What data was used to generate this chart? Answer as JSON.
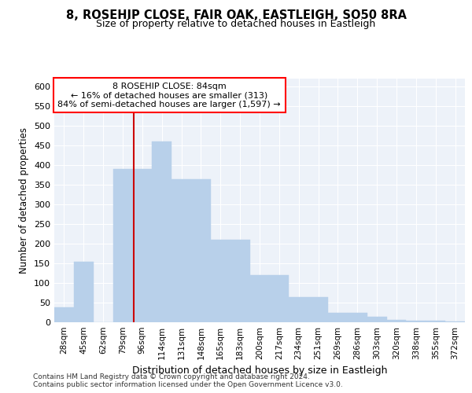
{
  "title_line1": "8, ROSEHIP CLOSE, FAIR OAK, EASTLEIGH, SO50 8RA",
  "title_line2": "Size of property relative to detached houses in Eastleigh",
  "xlabel": "Distribution of detached houses by size in Eastleigh",
  "ylabel": "Number of detached properties",
  "categories": [
    "28sqm",
    "45sqm",
    "62sqm",
    "79sqm",
    "96sqm",
    "114sqm",
    "131sqm",
    "148sqm",
    "165sqm",
    "183sqm",
    "200sqm",
    "217sqm",
    "234sqm",
    "251sqm",
    "269sqm",
    "286sqm",
    "303sqm",
    "320sqm",
    "338sqm",
    "355sqm",
    "372sqm"
  ],
  "bar_values": [
    38,
    155,
    0,
    390,
    390,
    460,
    365,
    365,
    210,
    210,
    120,
    120,
    65,
    65,
    25,
    25,
    15,
    7,
    5,
    5,
    2
  ],
  "bar_color": "#b8d0ea",
  "vline_color": "#cc0000",
  "vline_x": 3.55,
  "annotation_text": "8 ROSEHIP CLOSE: 84sqm\n← 16% of detached houses are smaller (313)\n84% of semi-detached houses are larger (1,597) →",
  "ylim": [
    0,
    620
  ],
  "yticks": [
    0,
    50,
    100,
    150,
    200,
    250,
    300,
    350,
    400,
    450,
    500,
    550,
    600
  ],
  "bg_color": "#edf2f9",
  "grid_color": "white",
  "footer_line1": "Contains HM Land Registry data © Crown copyright and database right 2024.",
  "footer_line2": "Contains public sector information licensed under the Open Government Licence v3.0."
}
